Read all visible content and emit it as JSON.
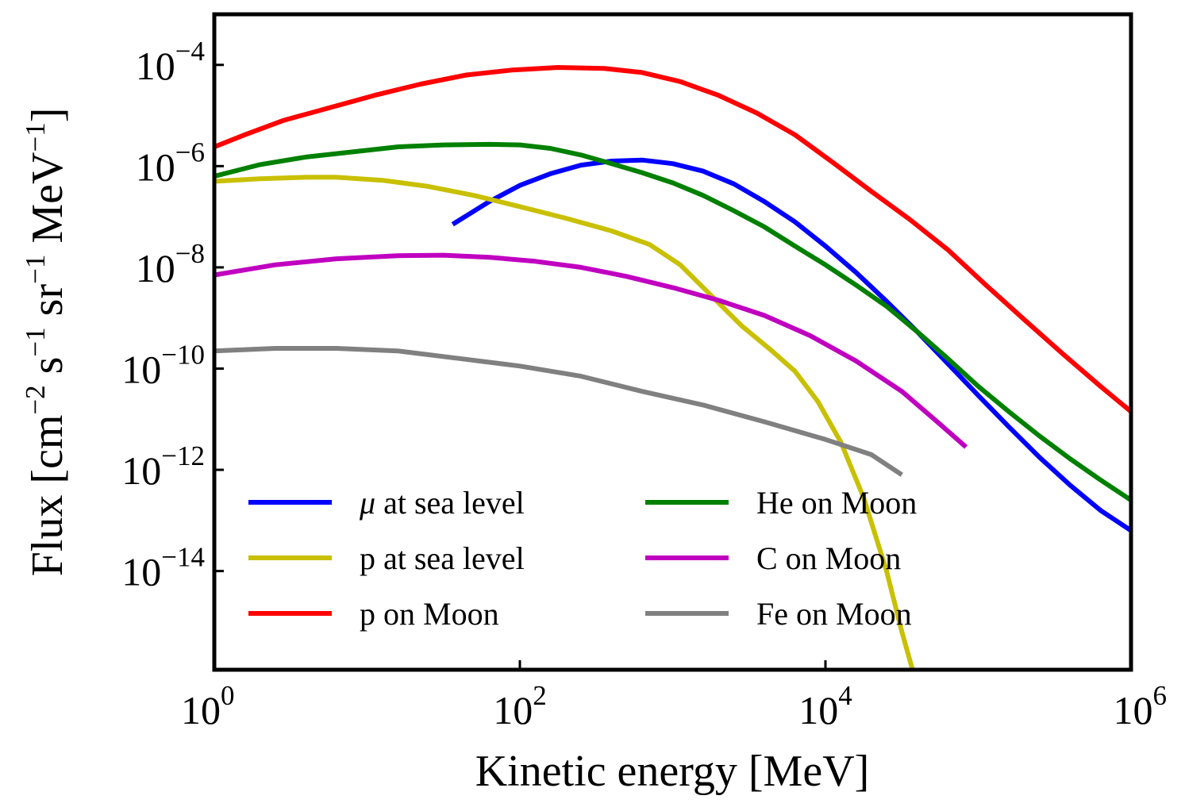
{
  "chart_data": {
    "type": "line",
    "xscale": "log",
    "yscale": "log",
    "xlabel": "Kinetic energy [MeV]",
    "ylabel": {
      "base": "Flux [cm",
      "sup1": "−2",
      "mid1": " s",
      "sup2": "−1",
      "mid2": " sr",
      "sup3": "−1",
      "mid3": " MeV",
      "sup4": "−1",
      "end": "]"
    },
    "xlim_exp": [
      0,
      6
    ],
    "ylim_exp": [
      -15.95,
      -3.0
    ],
    "xticks": [
      {
        "base": "10",
        "exp": "0",
        "e": 0
      },
      {
        "base": "10",
        "exp": "2",
        "e": 2
      },
      {
        "base": "10",
        "exp": "4",
        "e": 4
      },
      {
        "base": "10",
        "exp": "6",
        "e": 6
      }
    ],
    "yticks": [
      {
        "base": "10",
        "exp": "−4",
        "e": -4
      },
      {
        "base": "10",
        "exp": "−6",
        "e": -6
      },
      {
        "base": "10",
        "exp": "−8",
        "e": -8
      },
      {
        "base": "10",
        "exp": "−10",
        "e": -10
      },
      {
        "base": "10",
        "exp": "−12",
        "e": -12
      },
      {
        "base": "10",
        "exp": "−14",
        "e": -14
      }
    ],
    "series": [
      {
        "id": "mu-sea",
        "name": "μ at sea level",
        "symbol": "μ",
        "rest": " at sea level",
        "color": "#0000ff",
        "points": [
          [
            1.56,
            -7.15
          ],
          [
            1.8,
            -6.7
          ],
          [
            2.0,
            -6.38
          ],
          [
            2.2,
            -6.15
          ],
          [
            2.4,
            -5.98
          ],
          [
            2.6,
            -5.9
          ],
          [
            2.8,
            -5.88
          ],
          [
            3.0,
            -5.95
          ],
          [
            3.2,
            -6.1
          ],
          [
            3.4,
            -6.35
          ],
          [
            3.6,
            -6.7
          ],
          [
            3.8,
            -7.1
          ],
          [
            4.0,
            -7.58
          ],
          [
            4.2,
            -8.1
          ],
          [
            4.4,
            -8.67
          ],
          [
            4.6,
            -9.27
          ],
          [
            4.8,
            -9.9
          ],
          [
            5.0,
            -10.53
          ],
          [
            5.2,
            -11.15
          ],
          [
            5.4,
            -11.75
          ],
          [
            5.6,
            -12.3
          ],
          [
            5.8,
            -12.8
          ],
          [
            6.0,
            -13.2
          ]
        ]
      },
      {
        "id": "p-sea",
        "name": "p at sea level",
        "color": "#c8c000",
        "points": [
          [
            0.0,
            -6.3
          ],
          [
            0.3,
            -6.25
          ],
          [
            0.6,
            -6.22
          ],
          [
            0.8,
            -6.22
          ],
          [
            1.1,
            -6.28
          ],
          [
            1.4,
            -6.4
          ],
          [
            1.7,
            -6.58
          ],
          [
            2.0,
            -6.8
          ],
          [
            2.3,
            -7.03
          ],
          [
            2.6,
            -7.28
          ],
          [
            2.85,
            -7.55
          ],
          [
            3.05,
            -7.95
          ],
          [
            3.25,
            -8.55
          ],
          [
            3.45,
            -9.15
          ],
          [
            3.65,
            -9.65
          ],
          [
            3.8,
            -10.05
          ],
          [
            3.95,
            -10.65
          ],
          [
            4.1,
            -11.45
          ],
          [
            4.25,
            -12.55
          ],
          [
            4.4,
            -14.0
          ],
          [
            4.5,
            -15.2
          ],
          [
            4.57,
            -15.95
          ]
        ]
      },
      {
        "id": "p-moon",
        "name": "p on Moon",
        "color": "#ff0000",
        "points": [
          [
            0.0,
            -5.62
          ],
          [
            0.2,
            -5.38
          ],
          [
            0.45,
            -5.1
          ],
          [
            0.75,
            -4.85
          ],
          [
            1.05,
            -4.6
          ],
          [
            1.35,
            -4.38
          ],
          [
            1.65,
            -4.2
          ],
          [
            1.95,
            -4.1
          ],
          [
            2.25,
            -4.05
          ],
          [
            2.55,
            -4.07
          ],
          [
            2.8,
            -4.15
          ],
          [
            3.05,
            -4.33
          ],
          [
            3.3,
            -4.6
          ],
          [
            3.55,
            -4.95
          ],
          [
            3.8,
            -5.38
          ],
          [
            4.05,
            -5.93
          ],
          [
            4.3,
            -6.5
          ],
          [
            4.55,
            -7.05
          ],
          [
            4.8,
            -7.65
          ],
          [
            5.05,
            -8.35
          ],
          [
            5.3,
            -9.03
          ],
          [
            5.55,
            -9.7
          ],
          [
            5.8,
            -10.35
          ],
          [
            6.0,
            -10.85
          ]
        ]
      },
      {
        "id": "he-moon",
        "name": "He on Moon",
        "color": "#008000",
        "points": [
          [
            0.0,
            -6.2
          ],
          [
            0.3,
            -5.97
          ],
          [
            0.6,
            -5.82
          ],
          [
            0.9,
            -5.72
          ],
          [
            1.2,
            -5.62
          ],
          [
            1.5,
            -5.58
          ],
          [
            1.8,
            -5.57
          ],
          [
            2.0,
            -5.58
          ],
          [
            2.2,
            -5.65
          ],
          [
            2.4,
            -5.78
          ],
          [
            2.6,
            -5.95
          ],
          [
            2.8,
            -6.13
          ],
          [
            3.0,
            -6.33
          ],
          [
            3.2,
            -6.58
          ],
          [
            3.4,
            -6.88
          ],
          [
            3.6,
            -7.2
          ],
          [
            3.8,
            -7.58
          ],
          [
            4.0,
            -7.95
          ],
          [
            4.2,
            -8.35
          ],
          [
            4.4,
            -8.77
          ],
          [
            4.6,
            -9.27
          ],
          [
            4.8,
            -9.8
          ],
          [
            5.0,
            -10.35
          ],
          [
            5.2,
            -10.85
          ],
          [
            5.4,
            -11.33
          ],
          [
            5.6,
            -11.78
          ],
          [
            5.8,
            -12.2
          ],
          [
            6.0,
            -12.6
          ]
        ]
      },
      {
        "id": "c-moon",
        "name": "C on Moon",
        "color": "#c000c0",
        "points": [
          [
            0.0,
            -8.15
          ],
          [
            0.4,
            -7.95
          ],
          [
            0.8,
            -7.83
          ],
          [
            1.2,
            -7.77
          ],
          [
            1.5,
            -7.76
          ],
          [
            1.8,
            -7.8
          ],
          [
            2.1,
            -7.88
          ],
          [
            2.4,
            -8.0
          ],
          [
            2.7,
            -8.18
          ],
          [
            3.0,
            -8.4
          ],
          [
            3.3,
            -8.65
          ],
          [
            3.6,
            -8.95
          ],
          [
            3.9,
            -9.35
          ],
          [
            4.2,
            -9.85
          ],
          [
            4.5,
            -10.45
          ],
          [
            4.75,
            -11.1
          ],
          [
            4.92,
            -11.55
          ]
        ]
      },
      {
        "id": "fe-moon",
        "name": "Fe on Moon",
        "color": "#808080",
        "points": [
          [
            0.0,
            -9.65
          ],
          [
            0.4,
            -9.6
          ],
          [
            0.8,
            -9.6
          ],
          [
            1.2,
            -9.65
          ],
          [
            1.6,
            -9.8
          ],
          [
            2.0,
            -9.95
          ],
          [
            2.4,
            -10.15
          ],
          [
            2.8,
            -10.45
          ],
          [
            3.2,
            -10.72
          ],
          [
            3.6,
            -11.05
          ],
          [
            4.0,
            -11.4
          ],
          [
            4.3,
            -11.7
          ],
          [
            4.5,
            -12.1
          ]
        ]
      }
    ],
    "legend": {
      "placement": "lower-left",
      "columns": 2,
      "order": [
        [
          "mu-sea",
          "p-sea",
          "p-moon"
        ],
        [
          "he-moon",
          "c-moon",
          "fe-moon"
        ]
      ]
    }
  }
}
